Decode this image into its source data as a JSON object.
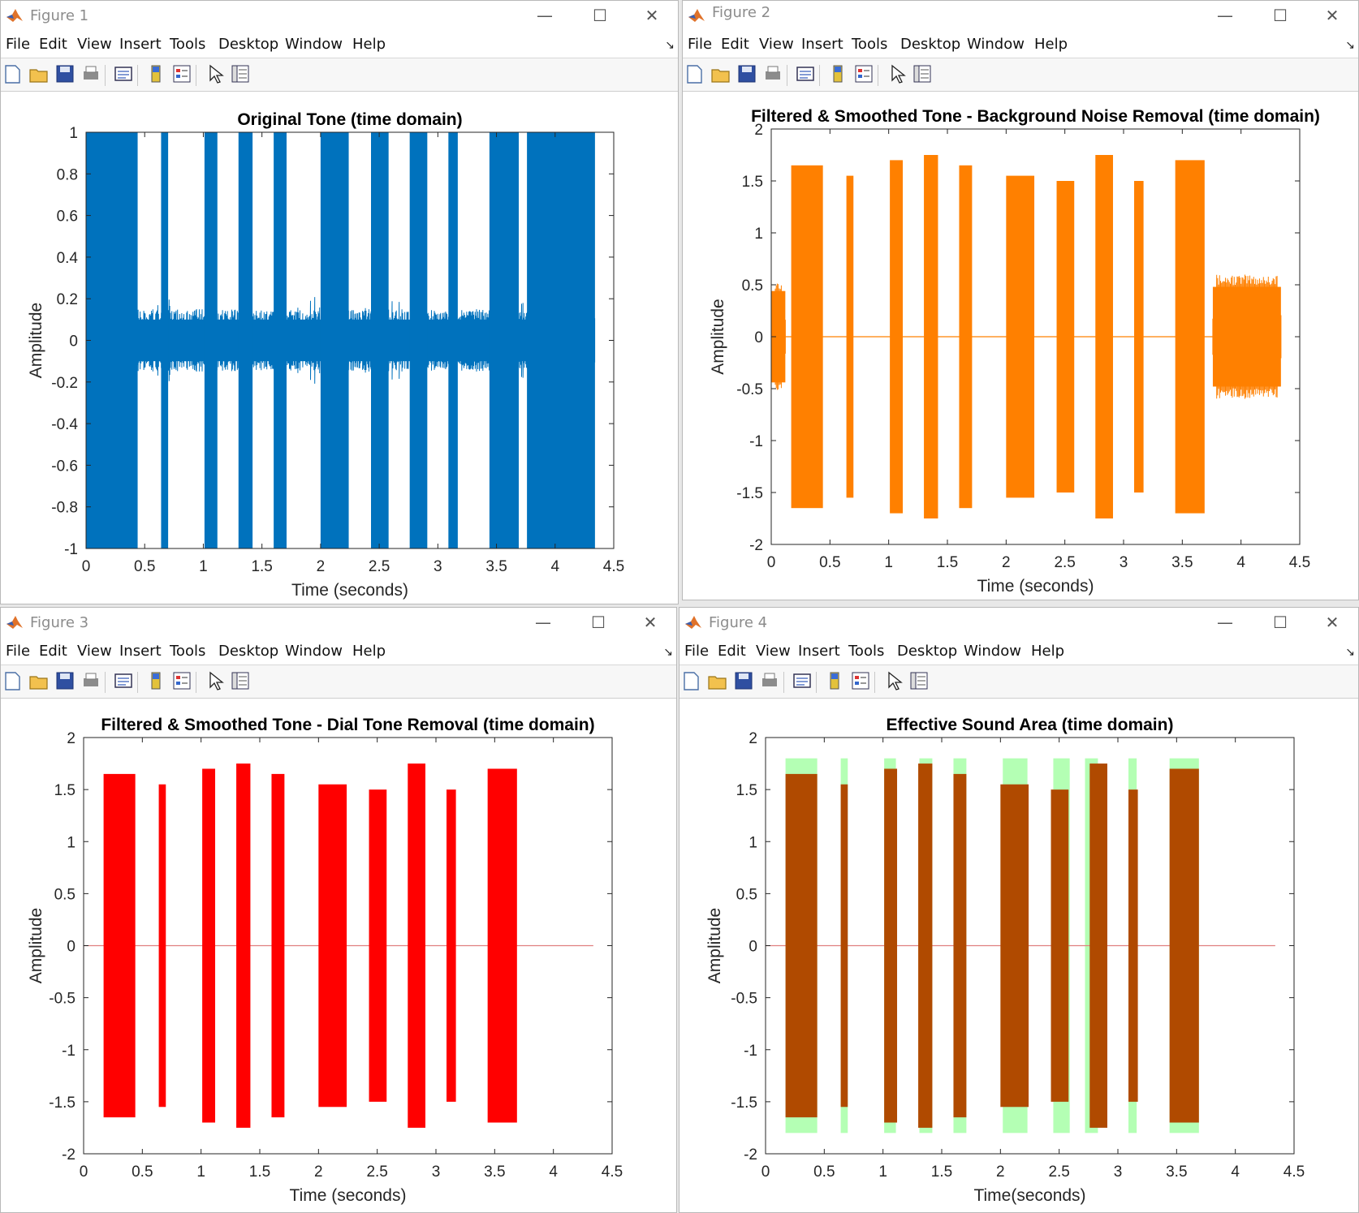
{
  "menus": [
    "File",
    "Edit",
    "View",
    "Insert",
    "Tools",
    "Desktop",
    "Window",
    "Help"
  ],
  "toolbar_icons": [
    "new-figure-icon",
    "open-file-icon",
    "save-icon",
    "print-icon",
    "link-icon",
    "colorbar-icon",
    "legend-icon",
    "pointer-icon",
    "property-inspector-icon"
  ],
  "window_controls": {
    "minimize": "—",
    "maximize": "☐",
    "close": "✕"
  },
  "colors": {
    "blue": "#0072BD",
    "orange": "#FF8000",
    "red": "#FF0000",
    "brown": "#B04A00",
    "green": "#B4FFB4",
    "baseline": "#E08080"
  },
  "figures": [
    {
      "window_title": "Figure 1",
      "chart_data": {
        "type": "line",
        "title": "Original Tone (time domain)",
        "xlabel": "Time (seconds)",
        "ylabel": "Amplitude",
        "xlim": [
          0,
          4.5
        ],
        "ylim": [
          -1,
          1
        ],
        "xticks": [
          "0",
          "0.5",
          "1",
          "1.5",
          "2",
          "2.5",
          "3",
          "3.5",
          "4",
          "4.5"
        ],
        "yticks": [
          "1",
          "0.8",
          "0.6",
          "0.4",
          "0.2",
          "0",
          "-0.2",
          "-0.4",
          "-0.6",
          "-0.8",
          "-1"
        ],
        "signal_end": 4.34,
        "series": [
          {
            "color": "#0072BD",
            "background_level": 0.15,
            "bursts": [
              [
                0.0,
                0.44,
                1.0
              ],
              [
                0.64,
                0.7,
                1.0
              ],
              [
                1.01,
                1.12,
                1.0
              ],
              [
                1.3,
                1.42,
                1.0
              ],
              [
                1.6,
                1.71,
                1.0
              ],
              [
                2.0,
                2.24,
                1.0
              ],
              [
                2.43,
                2.58,
                1.0
              ],
              [
                2.76,
                2.91,
                1.0
              ],
              [
                3.09,
                3.17,
                1.0
              ],
              [
                3.44,
                3.69,
                1.0
              ],
              [
                3.76,
                4.34,
                1.0
              ]
            ]
          }
        ],
        "grid": false
      }
    },
    {
      "window_title": "Figure 2",
      "chart_data": {
        "type": "line",
        "title": "Filtered & Smoothed Tone - Background Noise Removal (time domain)",
        "xlabel": "Time (seconds)",
        "ylabel": "Amplitude",
        "xlim": [
          0,
          4.5
        ],
        "ylim": [
          -2,
          2
        ],
        "xticks": [
          "0",
          "0.5",
          "1",
          "1.5",
          "2",
          "2.5",
          "3",
          "3.5",
          "4",
          "4.5"
        ],
        "yticks": [
          "2",
          "1.5",
          "1",
          "0.5",
          "0",
          "-0.5",
          "-1",
          "-1.5",
          "-2"
        ],
        "signal_end": 4.34,
        "series": [
          {
            "color": "#FF8000",
            "background_level": 0,
            "bursts": [
              [
                0.0,
                0.12,
                0.55
              ],
              [
                0.17,
                0.44,
                1.65
              ],
              [
                0.64,
                0.7,
                1.55
              ],
              [
                1.01,
                1.12,
                1.7
              ],
              [
                1.3,
                1.42,
                1.75
              ],
              [
                1.6,
                1.71,
                1.65
              ],
              [
                2.0,
                2.24,
                1.55
              ],
              [
                2.43,
                2.58,
                1.5
              ],
              [
                2.76,
                2.91,
                1.75
              ],
              [
                3.09,
                3.17,
                1.5
              ],
              [
                3.44,
                3.69,
                1.7
              ],
              [
                3.76,
                4.34,
                0.6
              ]
            ]
          }
        ],
        "grid": false
      }
    },
    {
      "window_title": "Figure 3",
      "chart_data": {
        "type": "line",
        "title": "Filtered & Smoothed Tone - Dial Tone Removal (time domain)",
        "xlabel": "Time (seconds)",
        "ylabel": "Amplitude",
        "xlim": [
          0,
          4.5
        ],
        "ylim": [
          -2,
          2
        ],
        "xticks": [
          "0",
          "0.5",
          "1",
          "1.5",
          "2",
          "2.5",
          "3",
          "3.5",
          "4",
          "4.5"
        ],
        "yticks": [
          "2",
          "1.5",
          "1",
          "0.5",
          "0",
          "-0.5",
          "-1",
          "-1.5",
          "-2"
        ],
        "signal_end": 4.34,
        "series": [
          {
            "color": "#FF0000",
            "background_level": 0,
            "bursts": [
              [
                0.17,
                0.44,
                1.65
              ],
              [
                0.64,
                0.7,
                1.55
              ],
              [
                1.01,
                1.12,
                1.7
              ],
              [
                1.3,
                1.42,
                1.75
              ],
              [
                1.6,
                1.71,
                1.65
              ],
              [
                2.0,
                2.24,
                1.55
              ],
              [
                2.43,
                2.58,
                1.5
              ],
              [
                2.76,
                2.91,
                1.75
              ],
              [
                3.09,
                3.17,
                1.5
              ],
              [
                3.44,
                3.69,
                1.7
              ]
            ]
          }
        ],
        "grid": false
      }
    },
    {
      "window_title": "Figure 4",
      "chart_data": {
        "type": "area",
        "title": "Effective Sound Area (time domain)",
        "xlabel": "Time(seconds)",
        "ylabel": "Amplitude",
        "xlim": [
          0,
          4.5
        ],
        "ylim": [
          -2,
          2
        ],
        "xticks": [
          "0",
          "0.5",
          "1",
          "1.5",
          "2",
          "2.5",
          "3",
          "3.5",
          "4",
          "4.5"
        ],
        "yticks": [
          "2",
          "1.5",
          "1",
          "0.5",
          "0",
          "-0.5",
          "-1",
          "-1.5",
          "-2"
        ],
        "signal_end": 4.34,
        "regions": {
          "color": "#B4FFB4",
          "ymin": -1.8,
          "ymax": 1.8,
          "spans": [
            [
              0.17,
              0.44
            ],
            [
              0.64,
              0.7
            ],
            [
              1.01,
              1.11
            ],
            [
              1.31,
              1.42
            ],
            [
              1.6,
              1.71
            ],
            [
              2.02,
              2.23
            ],
            [
              2.45,
              2.59
            ],
            [
              2.72,
              2.83
            ],
            [
              3.09,
              3.16
            ],
            [
              3.44,
              3.69
            ]
          ]
        },
        "series": [
          {
            "color": "#B04A00",
            "background_level": 0,
            "bursts": [
              [
                0.17,
                0.44,
                1.65
              ],
              [
                0.64,
                0.7,
                1.55
              ],
              [
                1.01,
                1.12,
                1.7
              ],
              [
                1.3,
                1.42,
                1.75
              ],
              [
                1.6,
                1.71,
                1.65
              ],
              [
                2.0,
                2.24,
                1.55
              ],
              [
                2.43,
                2.58,
                1.5
              ],
              [
                2.76,
                2.91,
                1.75
              ],
              [
                3.09,
                3.17,
                1.5
              ],
              [
                3.44,
                3.69,
                1.7
              ]
            ]
          }
        ],
        "grid": false
      }
    }
  ]
}
